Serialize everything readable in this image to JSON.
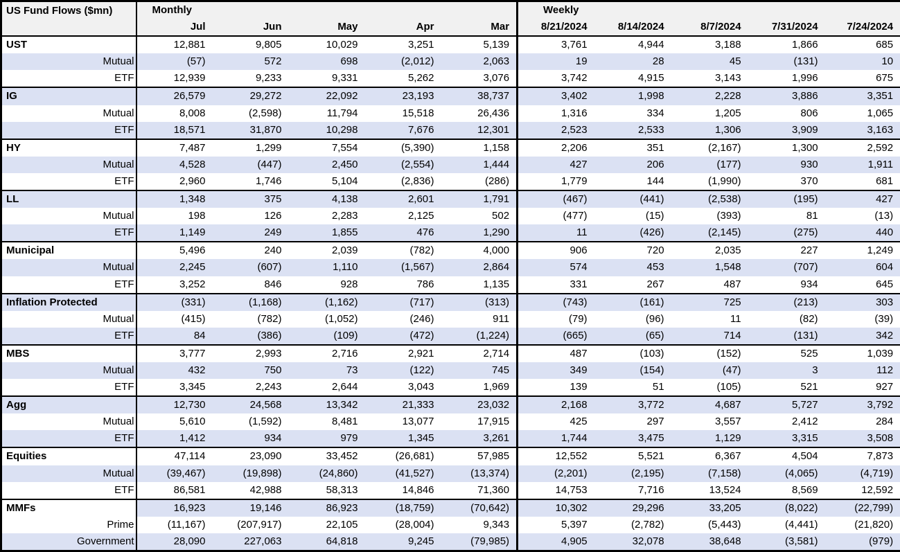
{
  "chart_data": {
    "type": "table",
    "title": "US Fund Flows ($mn)",
    "sections": [
      {
        "label": "Monthly",
        "columns": [
          "Jul",
          "Jun",
          "May",
          "Apr",
          "Mar"
        ]
      },
      {
        "label": "Weekly",
        "columns": [
          "8/21/2024",
          "8/14/2024",
          "8/7/2024",
          "7/31/2024",
          "7/24/2024"
        ]
      }
    ],
    "number_format": "thousands commas, negatives in parentheses",
    "groups": [
      {
        "label": "UST",
        "total": {
          "monthly": [
            12881,
            9805,
            10029,
            3251,
            5139
          ],
          "weekly": [
            3761,
            4944,
            3188,
            1866,
            685
          ]
        },
        "subs": [
          {
            "label": "Mutual",
            "monthly": [
              -57,
              572,
              698,
              -2012,
              2063
            ],
            "weekly": [
              19,
              28,
              45,
              -131,
              10
            ]
          },
          {
            "label": "ETF",
            "monthly": [
              12939,
              9233,
              9331,
              5262,
              3076
            ],
            "weekly": [
              3742,
              4915,
              3143,
              1996,
              675
            ]
          }
        ]
      },
      {
        "label": "IG",
        "total": {
          "monthly": [
            26579,
            29272,
            22092,
            23193,
            38737
          ],
          "weekly": [
            3402,
            1998,
            2228,
            3886,
            3351
          ]
        },
        "subs": [
          {
            "label": "Mutual",
            "monthly": [
              8008,
              -2598,
              11794,
              15518,
              26436
            ],
            "weekly": [
              1316,
              334,
              1205,
              806,
              1065
            ]
          },
          {
            "label": "ETF",
            "monthly": [
              18571,
              31870,
              10298,
              7676,
              12301
            ],
            "weekly": [
              2523,
              2533,
              1306,
              3909,
              3163
            ]
          }
        ]
      },
      {
        "label": "HY",
        "total": {
          "monthly": [
            7487,
            1299,
            7554,
            -5390,
            1158
          ],
          "weekly": [
            2206,
            351,
            -2167,
            1300,
            2592
          ]
        },
        "subs": [
          {
            "label": "Mutual",
            "monthly": [
              4528,
              -447,
              2450,
              -2554,
              1444
            ],
            "weekly": [
              427,
              206,
              -177,
              930,
              1911
            ]
          },
          {
            "label": "ETF",
            "monthly": [
              2960,
              1746,
              5104,
              -2836,
              -286
            ],
            "weekly": [
              1779,
              144,
              -1990,
              370,
              681
            ]
          }
        ]
      },
      {
        "label": "LL",
        "total": {
          "monthly": [
            1348,
            375,
            4138,
            2601,
            1791
          ],
          "weekly": [
            -467,
            -441,
            -2538,
            -195,
            427
          ]
        },
        "subs": [
          {
            "label": "Mutual",
            "monthly": [
              198,
              126,
              2283,
              2125,
              502
            ],
            "weekly": [
              -477,
              -15,
              -393,
              81,
              -13
            ]
          },
          {
            "label": "ETF",
            "monthly": [
              1149,
              249,
              1855,
              476,
              1290
            ],
            "weekly": [
              11,
              -426,
              -2145,
              -275,
              440
            ]
          }
        ]
      },
      {
        "label": "Municipal",
        "total": {
          "monthly": [
            5496,
            240,
            2039,
            -782,
            4000
          ],
          "weekly": [
            906,
            720,
            2035,
            227,
            1249
          ]
        },
        "subs": [
          {
            "label": "Mutual",
            "monthly": [
              2245,
              -607,
              1110,
              -1567,
              2864
            ],
            "weekly": [
              574,
              453,
              1548,
              -707,
              604
            ]
          },
          {
            "label": "ETF",
            "monthly": [
              3252,
              846,
              928,
              786,
              1135
            ],
            "weekly": [
              331,
              267,
              487,
              934,
              645
            ]
          }
        ]
      },
      {
        "label": "Inflation Protected",
        "total": {
          "monthly": [
            -331,
            -1168,
            -1162,
            -717,
            -313
          ],
          "weekly": [
            -743,
            -161,
            725,
            -213,
            303
          ]
        },
        "subs": [
          {
            "label": "Mutual",
            "monthly": [
              -415,
              -782,
              -1052,
              -246,
              911
            ],
            "weekly": [
              -79,
              -96,
              11,
              -82,
              -39
            ]
          },
          {
            "label": "ETF",
            "monthly": [
              84,
              -386,
              -109,
              -472,
              -1224
            ],
            "weekly": [
              -665,
              -65,
              714,
              -131,
              342
            ]
          }
        ]
      },
      {
        "label": "MBS",
        "total": {
          "monthly": [
            3777,
            2993,
            2716,
            2921,
            2714
          ],
          "weekly": [
            487,
            -103,
            -152,
            525,
            1039
          ]
        },
        "subs": [
          {
            "label": "Mutual",
            "monthly": [
              432,
              750,
              73,
              -122,
              745
            ],
            "weekly": [
              349,
              -154,
              -47,
              3,
              112
            ]
          },
          {
            "label": "ETF",
            "monthly": [
              3345,
              2243,
              2644,
              3043,
              1969
            ],
            "weekly": [
              139,
              51,
              -105,
              521,
              927
            ]
          }
        ]
      },
      {
        "label": "Agg",
        "total": {
          "monthly": [
            12730,
            24568,
            13342,
            21333,
            23032
          ],
          "weekly": [
            2168,
            3772,
            4687,
            5727,
            3792
          ]
        },
        "subs": [
          {
            "label": "Mutual",
            "monthly": [
              5610,
              -1592,
              8481,
              13077,
              17915
            ],
            "weekly": [
              425,
              297,
              3557,
              2412,
              284
            ]
          },
          {
            "label": "ETF",
            "monthly": [
              1412,
              934,
              979,
              1345,
              3261
            ],
            "weekly": [
              1744,
              3475,
              1129,
              3315,
              3508
            ]
          }
        ]
      },
      {
        "label": "Equities",
        "total": {
          "monthly": [
            47114,
            23090,
            33452,
            -26681,
            57985
          ],
          "weekly": [
            12552,
            5521,
            6367,
            4504,
            7873
          ]
        },
        "subs": [
          {
            "label": "Mutual",
            "monthly": [
              -39467,
              -19898,
              -24860,
              -41527,
              -13374
            ],
            "weekly": [
              -2201,
              -2195,
              -7158,
              -4065,
              -4719
            ]
          },
          {
            "label": "ETF",
            "monthly": [
              86581,
              42988,
              58313,
              14846,
              71360
            ],
            "weekly": [
              14753,
              7716,
              13524,
              8569,
              12592
            ]
          }
        ]
      },
      {
        "label": "MMFs",
        "plain_label_on_total": true,
        "total": {
          "monthly": [
            16923,
            19146,
            86923,
            -18759,
            -70642
          ],
          "weekly": [
            10302,
            29296,
            33205,
            -8022,
            -22799
          ]
        },
        "subs": [
          {
            "label": "Prime",
            "monthly": [
              -11167,
              -207917,
              22105,
              -28004,
              9343
            ],
            "weekly": [
              5397,
              -2782,
              -5443,
              -4441,
              -21820
            ]
          },
          {
            "label": "Government",
            "monthly": [
              28090,
              227063,
              64818,
              9245,
              -79985
            ],
            "weekly": [
              4905,
              32078,
              38648,
              -3581,
              -979
            ]
          }
        ]
      }
    ]
  },
  "colors": {
    "row_shade": "#dbe1f3",
    "header_bg": "#f1f1f1",
    "border": "#000000",
    "text": "#000000"
  }
}
